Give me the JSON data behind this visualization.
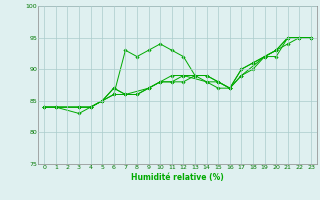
{
  "xlabel": "Humidité relative (%)",
  "bg_color": "#dff0f0",
  "grid_color": "#aacccc",
  "line_color": "#00aa00",
  "xlim": [
    -0.5,
    23.5
  ],
  "ylim": [
    75,
    100
  ],
  "xticks": [
    0,
    1,
    2,
    3,
    4,
    5,
    6,
    7,
    8,
    9,
    10,
    11,
    12,
    13,
    14,
    15,
    16,
    17,
    18,
    19,
    20,
    21,
    22,
    23
  ],
  "yticks": [
    75,
    80,
    85,
    90,
    95,
    100
  ],
  "series": [
    {
      "x": [
        0,
        1,
        3,
        4,
        5,
        6,
        7,
        8,
        9,
        10,
        11,
        12,
        13,
        14,
        15,
        16,
        17,
        19,
        20,
        21,
        22,
        23
      ],
      "y": [
        84,
        84,
        83,
        84,
        85,
        86,
        93,
        92,
        93,
        94,
        93,
        92,
        89,
        88,
        87,
        87,
        89,
        92,
        93,
        95,
        95,
        95
      ]
    },
    {
      "x": [
        0,
        1,
        3,
        4,
        5,
        6,
        7,
        9,
        10,
        11,
        12,
        13,
        14,
        15,
        16,
        17,
        18,
        19,
        20,
        21,
        22,
        23
      ],
      "y": [
        84,
        84,
        84,
        84,
        85,
        86,
        86,
        87,
        88,
        88,
        88,
        89,
        89,
        88,
        87,
        90,
        91,
        92,
        93,
        95,
        95,
        95
      ]
    },
    {
      "x": [
        0,
        1,
        3,
        4,
        5,
        6,
        7,
        8,
        9,
        10,
        11,
        12,
        13,
        14,
        15,
        16,
        17,
        18,
        19,
        20,
        21,
        22,
        23
      ],
      "y": [
        84,
        84,
        84,
        84,
        85,
        87,
        86,
        86,
        87,
        88,
        89,
        89,
        89,
        89,
        88,
        87,
        89,
        90,
        92,
        92,
        95,
        95,
        95
      ]
    },
    {
      "x": [
        0,
        1,
        3,
        4,
        5,
        6,
        7,
        8,
        9,
        10,
        11,
        12,
        14,
        15,
        16,
        17,
        18,
        19,
        20,
        21,
        22,
        23
      ],
      "y": [
        84,
        84,
        84,
        84,
        85,
        87,
        86,
        86,
        87,
        88,
        88,
        89,
        88,
        88,
        87,
        90,
        91,
        92,
        93,
        94,
        95,
        95
      ]
    }
  ]
}
